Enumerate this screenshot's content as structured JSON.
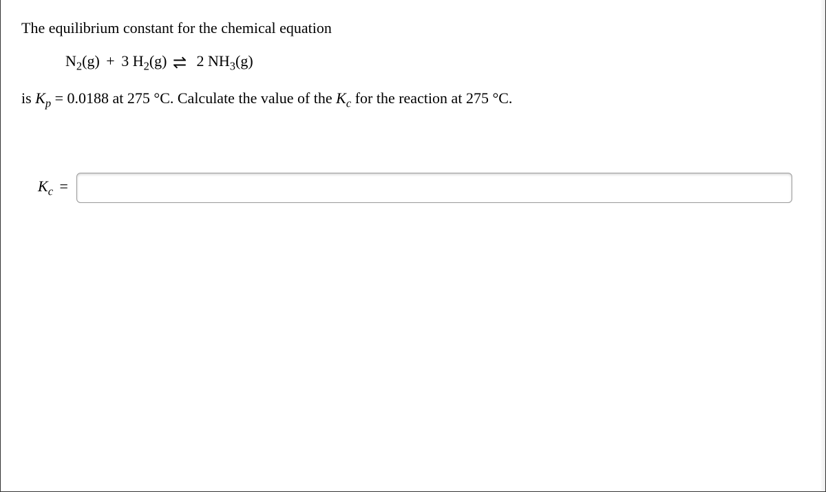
{
  "question": {
    "intro": "The equilibrium constant for the chemical equation",
    "equation": {
      "reactant1": "N",
      "reactant1_sub": "2",
      "reactant1_state": "(g)",
      "plus": "+",
      "reactant2_coef": "3",
      "reactant2": "H",
      "reactant2_sub": "2",
      "reactant2_state": "(g)",
      "product_coef": "2",
      "product": "NH",
      "product_sub": "3",
      "product_state": "(g)"
    },
    "statement_pre": "is ",
    "kp_symbol": "K",
    "kp_sub": "p",
    "statement_mid1": " = 0.0188 at 275 °C. Calculate the value of the ",
    "kc_symbol": "K",
    "kc_sub": "c",
    "statement_mid2": " for the reaction at 275 °C."
  },
  "answer": {
    "label_symbol": "K",
    "label_sub": "c",
    "label_suffix": " =",
    "value": ""
  }
}
